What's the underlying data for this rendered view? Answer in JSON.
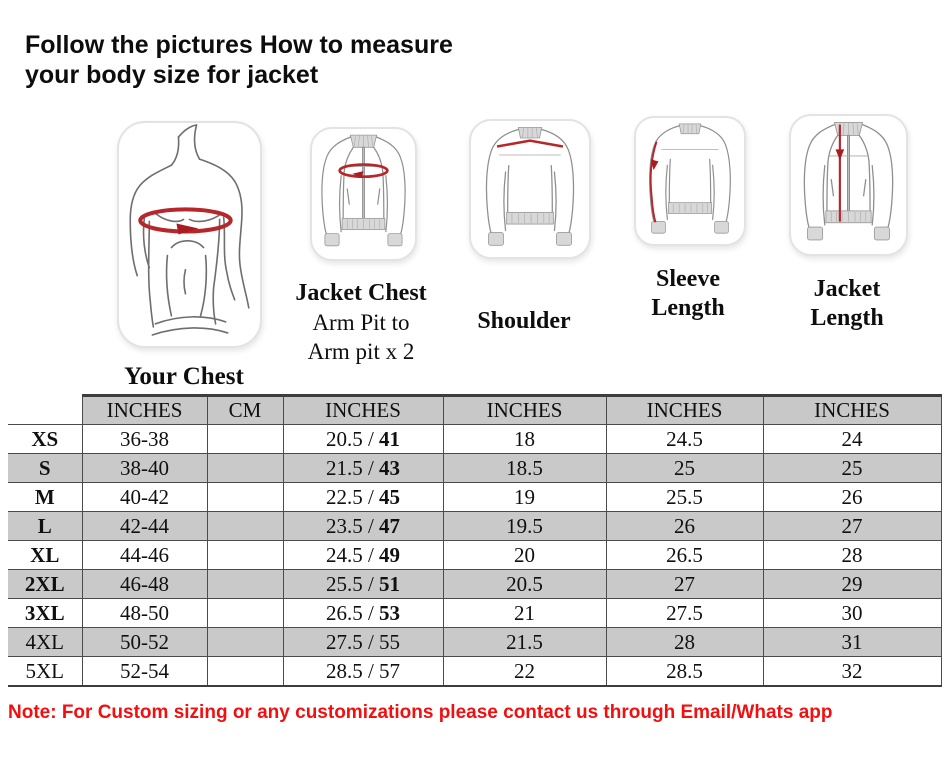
{
  "title": {
    "line1": "Follow the pictures How to measure",
    "line2": "your body size for jacket"
  },
  "figures": {
    "your_chest": {
      "label": "Your Chest"
    },
    "jacket_chest": {
      "label": "Jacket Chest",
      "sub_line1": "Arm Pit to",
      "sub_line2": "Arm pit x 2"
    },
    "shoulder": {
      "label": "Shoulder"
    },
    "sleeve_length": {
      "label": "Sleeve Length"
    },
    "jacket_length": {
      "label": "Jacket Length"
    }
  },
  "table": {
    "columns": [
      "",
      "INCHES",
      "CM",
      "INCHES",
      "INCHES",
      "INCHES",
      "INCHES"
    ],
    "rows": [
      {
        "size": "XS",
        "size_bold": true,
        "chest_in": "36-38",
        "chest_cm": "",
        "jacket_chest_in": "20.5",
        "jacket_chest_cm": "41",
        "cm_bold": true,
        "shoulder_in": "18",
        "sleeve_in": "24.5",
        "length_in": "24"
      },
      {
        "size": "S",
        "size_bold": true,
        "chest_in": "38-40",
        "chest_cm": "",
        "jacket_chest_in": "21.5",
        "jacket_chest_cm": "43",
        "cm_bold": true,
        "shoulder_in": "18.5",
        "sleeve_in": "25",
        "length_in": "25"
      },
      {
        "size": "M",
        "size_bold": true,
        "chest_in": "40-42",
        "chest_cm": "",
        "jacket_chest_in": "22.5",
        "jacket_chest_cm": "45",
        "cm_bold": true,
        "shoulder_in": "19",
        "sleeve_in": "25.5",
        "length_in": "26"
      },
      {
        "size": "L",
        "size_bold": true,
        "chest_in": "42-44",
        "chest_cm": "",
        "jacket_chest_in": "23.5",
        "jacket_chest_cm": "47",
        "cm_bold": true,
        "shoulder_in": "19.5",
        "sleeve_in": "26",
        "length_in": "27"
      },
      {
        "size": "XL",
        "size_bold": true,
        "chest_in": "44-46",
        "chest_cm": "",
        "jacket_chest_in": "24.5",
        "jacket_chest_cm": "49",
        "cm_bold": true,
        "shoulder_in": "20",
        "sleeve_in": "26.5",
        "length_in": "28"
      },
      {
        "size": "2XL",
        "size_bold": true,
        "chest_in": "46-48",
        "chest_cm": "",
        "jacket_chest_in": "25.5",
        "jacket_chest_cm": "51",
        "cm_bold": true,
        "shoulder_in": "20.5",
        "sleeve_in": "27",
        "length_in": "29"
      },
      {
        "size": "3XL",
        "size_bold": true,
        "chest_in": "48-50",
        "chest_cm": "",
        "jacket_chest_in": "26.5",
        "jacket_chest_cm": "53",
        "cm_bold": true,
        "shoulder_in": "21",
        "sleeve_in": "27.5",
        "length_in": "30"
      },
      {
        "size": "4XL",
        "size_bold": false,
        "chest_in": "50-52",
        "chest_cm": "",
        "jacket_chest_in": "27.5",
        "jacket_chest_cm": "55",
        "cm_bold": false,
        "shoulder_in": "21.5",
        "sleeve_in": "28",
        "length_in": "31"
      },
      {
        "size": "5XL",
        "size_bold": false,
        "chest_in": "52-54",
        "chest_cm": "",
        "jacket_chest_in": "28.5",
        "jacket_chest_cm": "57",
        "cm_bold": false,
        "shoulder_in": "22",
        "sleeve_in": "28.5",
        "length_in": "32"
      }
    ]
  },
  "note": "Note: For Custom sizing or any customizations please contact us through Email/Whats app",
  "colors": {
    "note_red": "#f10f0f",
    "measure_red": "#b5272a",
    "header_gray": "#c8c8c8",
    "row_stripe_gray": "#c9c9c9"
  }
}
